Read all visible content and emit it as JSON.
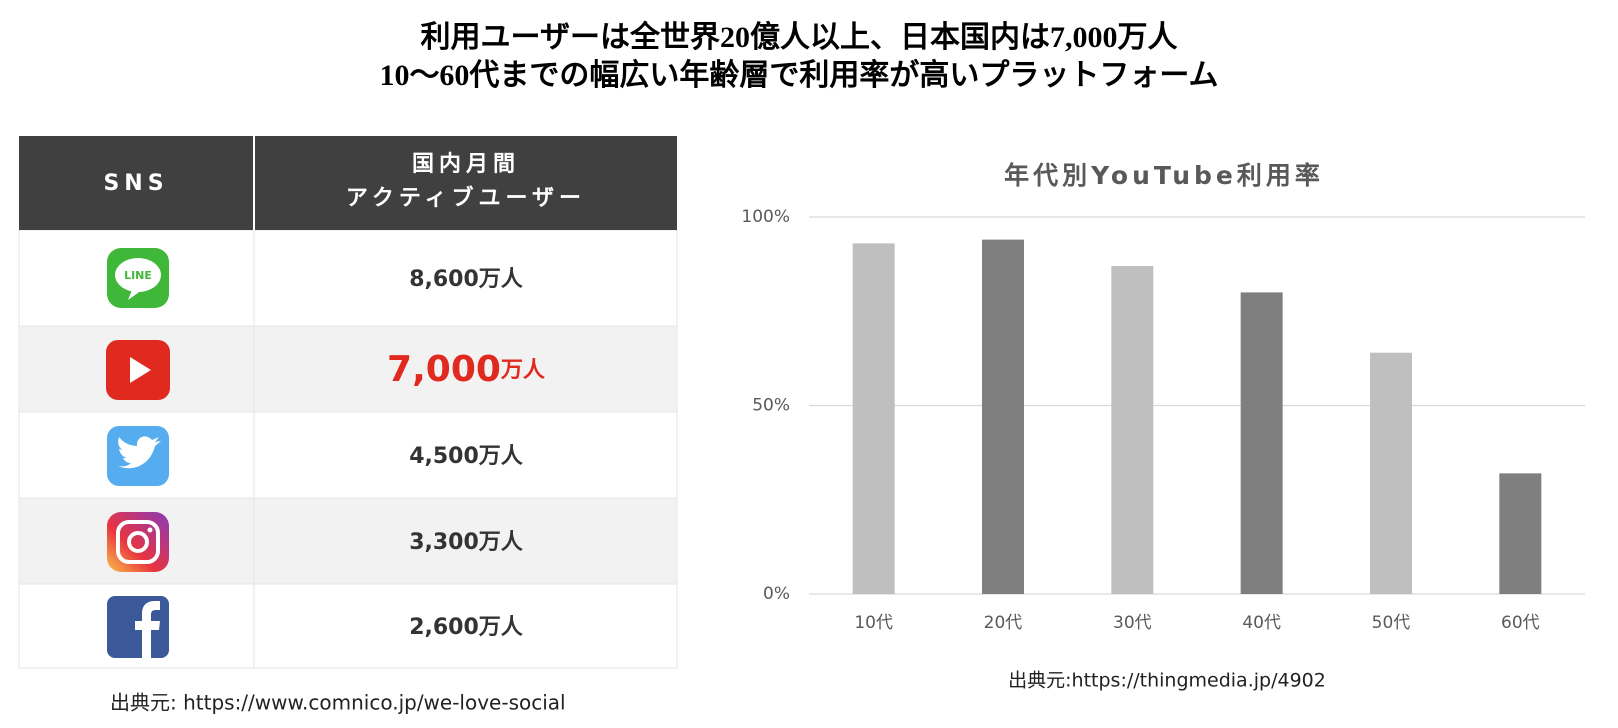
{
  "header": {
    "title_lines": [
      "利用ユーザーは全世界20億人以上、日本国内は7,000万人",
      "10～60代までの幅広い年齢層で利用率が高いプラットフォーム"
    ]
  },
  "table": {
    "columns": [
      "SNS",
      [
        "国内月間",
        "アクティブユーザー"
      ]
    ],
    "icon_text": "LINE",
    "highlight_row": 1,
    "rows": [
      {
        "amount": "8,600",
        "unit": "万人"
      },
      {
        "amount": "7,000",
        "unit": "万人"
      },
      {
        "amount": "4,500",
        "unit": "万人"
      },
      {
        "amount": "3,300",
        "unit": "万人"
      },
      {
        "amount": "2,600",
        "unit": "万人"
      }
    ],
    "source": "出典元: https://www.comnico.jp/we-love-social"
  },
  "chart_data": {
    "type": "bar",
    "title": "年代別YouTube利用率",
    "categories": [
      "10代",
      "20代",
      "30代",
      "40代",
      "50代",
      "60代"
    ],
    "values": [
      93,
      94,
      87,
      80,
      64,
      32
    ],
    "colors": [
      "#bfbfbf",
      "#7f7f7f",
      "#bfbfbf",
      "#7f7f7f",
      "#bfbfbf",
      "#7f7f7f"
    ],
    "ylim": [
      0,
      100
    ],
    "yticks": [
      {
        "value": 0,
        "label": "0%"
      },
      {
        "value": 50,
        "label": "50%"
      },
      {
        "value": 100,
        "label": "100%"
      }
    ],
    "grid": true,
    "source": "出典元:https://thingmedia.jp/4902"
  }
}
